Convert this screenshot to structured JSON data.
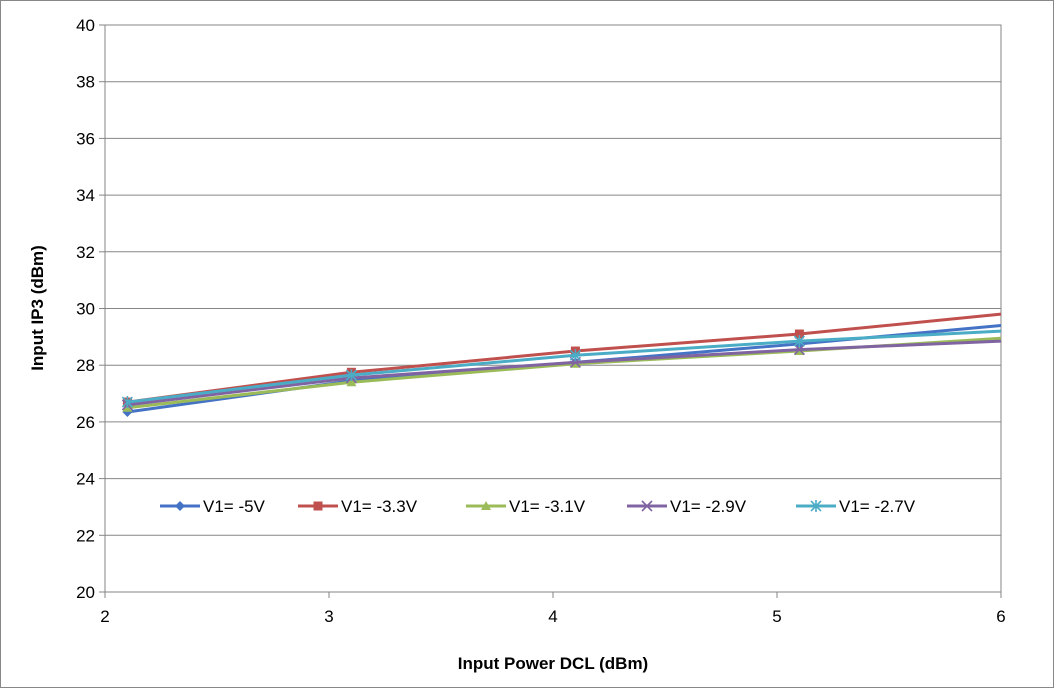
{
  "chart_data": {
    "type": "line",
    "title": "",
    "xlabel": "Input Power DCL (dBm)",
    "ylabel": "Input IP3 (dBm)",
    "xlim": [
      2,
      6
    ],
    "ylim": [
      20,
      40
    ],
    "xticks": [
      2,
      3,
      4,
      5,
      6
    ],
    "yticks": [
      20,
      22,
      24,
      26,
      28,
      30,
      32,
      34,
      36,
      38,
      40
    ],
    "grid": {
      "x": false,
      "y": true
    },
    "legend_position": "inside-bottom-center",
    "series": [
      {
        "name": "V1= -5V",
        "color": "#4472C4",
        "marker": "diamond",
        "x": [
          2.1,
          3.1,
          4.1,
          5.1,
          6.0
        ],
        "y": [
          26.35,
          27.45,
          28.1,
          28.75,
          29.4
        ]
      },
      {
        "name": "V1= -3.3V",
        "color": "#C0504D",
        "marker": "square",
        "x": [
          2.1,
          3.1,
          4.1,
          5.1,
          6.0
        ],
        "y": [
          26.7,
          27.75,
          28.5,
          29.1,
          29.8
        ]
      },
      {
        "name": "V1= -3.1V",
        "color": "#9BBB59",
        "marker": "triangle",
        "x": [
          2.1,
          3.1,
          4.1,
          5.1,
          6.0
        ],
        "y": [
          26.5,
          27.4,
          28.05,
          28.5,
          28.95
        ]
      },
      {
        "name": "V1= -2.9V",
        "color": "#8064A2",
        "marker": "x",
        "x": [
          2.1,
          3.1,
          4.1,
          5.1,
          6.0
        ],
        "y": [
          26.6,
          27.55,
          28.1,
          28.55,
          28.85
        ]
      },
      {
        "name": "V1= -2.7V",
        "color": "#4BACC6",
        "marker": "star",
        "x": [
          2.1,
          3.1,
          4.1,
          5.1,
          6.0
        ],
        "y": [
          26.7,
          27.65,
          28.35,
          28.85,
          29.2
        ]
      }
    ]
  }
}
